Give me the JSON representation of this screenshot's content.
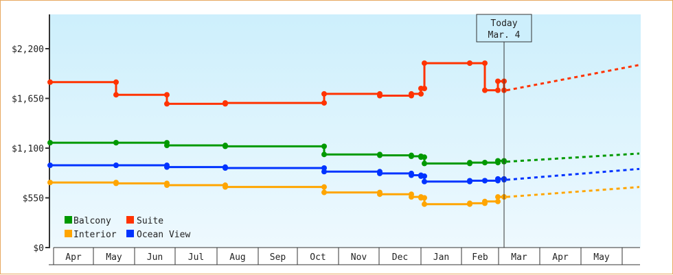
{
  "chart_data": {
    "type": "line",
    "title": "",
    "xlabel": "",
    "ylabel": "",
    "ylim": [
      0,
      2600
    ],
    "y_ticks": [
      "$0",
      "$550",
      "$1,100",
      "$1,650",
      "$2,200"
    ],
    "y_tick_values": [
      0,
      550,
      1100,
      1650,
      2200
    ],
    "x_ticks": [
      "Apr",
      "May",
      "Jun",
      "Jul",
      "Aug",
      "Sep",
      "Oct",
      "Nov",
      "Dec",
      "Jan",
      "Feb",
      "Mar",
      "Apr",
      "May"
    ],
    "grid": false,
    "legend_position": "lower-left inside",
    "annotation": {
      "line1": "Today",
      "line2": "Mar. 4"
    },
    "series": [
      {
        "name": "Suite",
        "color": "#ff3300",
        "approx_values": [
          1830,
          1690,
          1590,
          1600,
          1700,
          1680,
          1700,
          1760,
          2040,
          2040,
          1740,
          1840,
          1740
        ],
        "forecast_end_value": 2020
      },
      {
        "name": "Balcony",
        "color": "#009900",
        "approx_values": [
          1160,
          1160,
          1130,
          1120,
          1030,
          1020,
          1010,
          1000,
          930,
          940,
          940,
          960,
          950
        ],
        "forecast_end_value": 1040
      },
      {
        "name": "Ocean View",
        "color": "#0033ff",
        "approx_values": [
          910,
          910,
          890,
          880,
          840,
          820,
          800,
          790,
          730,
          740,
          740,
          760,
          750
        ],
        "forecast_end_value": 870
      },
      {
        "name": "Interior",
        "color": "#ffa500",
        "approx_values": [
          720,
          710,
          690,
          670,
          610,
          590,
          560,
          550,
          480,
          490,
          510,
          560,
          560
        ],
        "forecast_end_value": 670
      }
    ]
  },
  "legend": [
    {
      "label": "Balcony",
      "color": "#009900"
    },
    {
      "label": "Suite",
      "color": "#ff3300"
    },
    {
      "label": "Interior",
      "color": "#ffa500"
    },
    {
      "label": "Ocean View",
      "color": "#0033ff"
    }
  ]
}
